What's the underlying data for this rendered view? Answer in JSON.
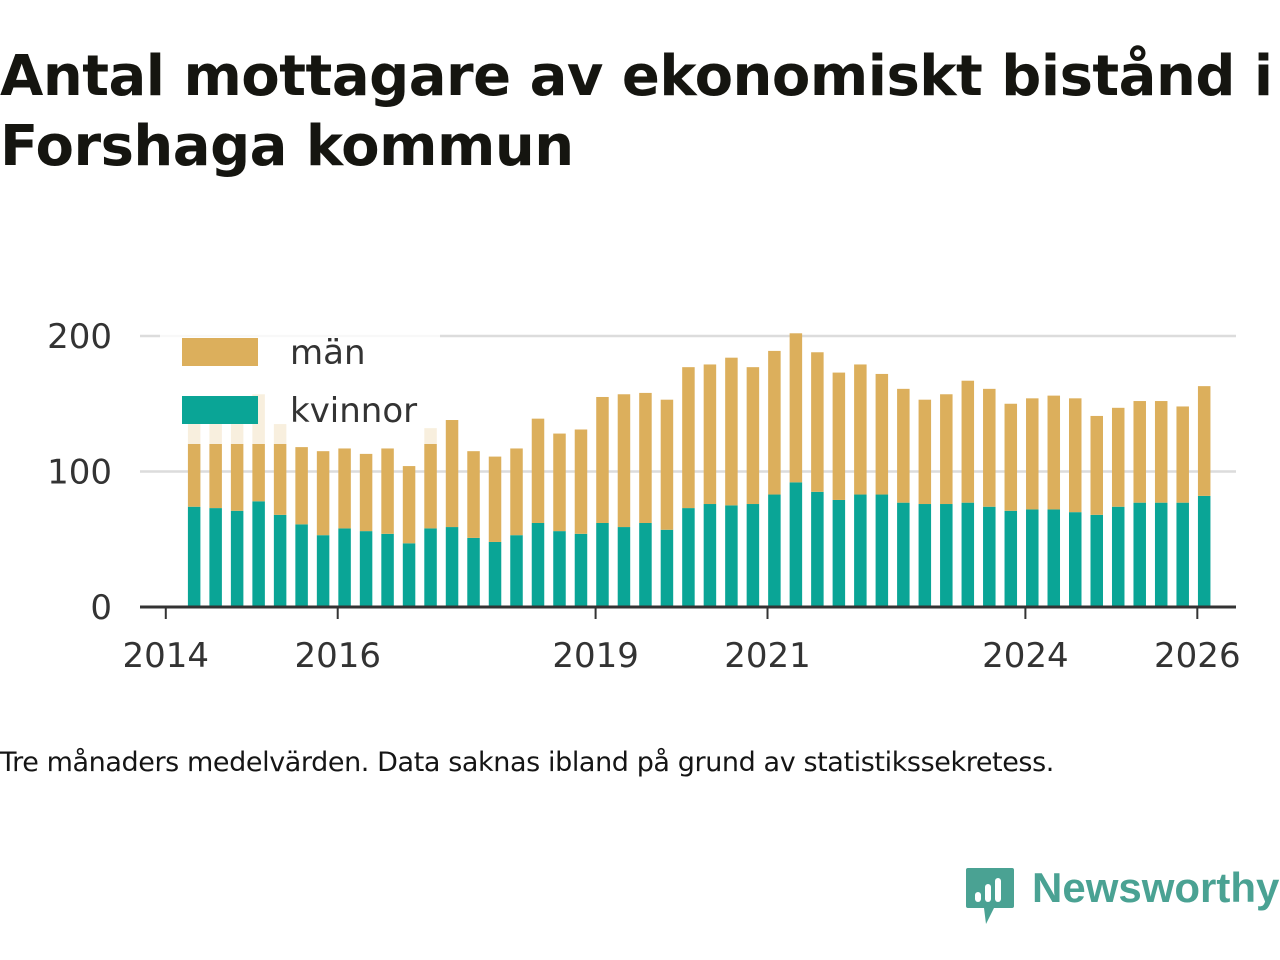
{
  "title": "Antal mottagare av ekonomiskt bistånd i Forshaga kommun",
  "caption": "Tre månaders medelvärden. Data saknas ibland på grund av statistikssekretess.",
  "brand": {
    "name": "Newsworthy",
    "color": "#4aa293"
  },
  "colors": {
    "man": "#dcaf5c",
    "kvinnor": "#0aa596",
    "grid": "#dcdcdc",
    "axis": "#333333",
    "text": "#333333"
  },
  "chart_data": {
    "type": "bar",
    "stacked": true,
    "ylim": [
      0,
      200
    ],
    "yticks": [
      0,
      100,
      200
    ],
    "xlim": [
      2013.7,
      2026.45
    ],
    "xticks": [
      2014,
      2016,
      2019,
      2021,
      2024,
      2026
    ],
    "legend": "top-left",
    "grid": true,
    "x": [
      2014.33,
      2014.58,
      2014.83,
      2015.08,
      2015.33,
      2015.58,
      2015.83,
      2016.08,
      2016.33,
      2016.58,
      2016.83,
      2017.08,
      2017.33,
      2017.58,
      2017.83,
      2018.08,
      2018.33,
      2018.58,
      2018.83,
      2019.08,
      2019.33,
      2019.58,
      2019.83,
      2020.08,
      2020.33,
      2020.58,
      2020.83,
      2021.08,
      2021.33,
      2021.58,
      2021.83,
      2022.08,
      2022.33,
      2022.58,
      2022.83,
      2023.08,
      2023.33,
      2023.58,
      2023.83,
      2024.08,
      2024.33,
      2024.58,
      2024.83,
      2025.08,
      2025.33,
      2025.58,
      2025.83,
      2026.08
    ],
    "series": [
      {
        "name": "kvinnor",
        "color": "#0aa596",
        "values": [
          74,
          73,
          71,
          78,
          68,
          61,
          53,
          58,
          56,
          54,
          47,
          58,
          59,
          51,
          48,
          53,
          62,
          56,
          54,
          62,
          59,
          62,
          57,
          73,
          76,
          75,
          76,
          83,
          92,
          85,
          79,
          83,
          83,
          77,
          76,
          76,
          77,
          74,
          71,
          72,
          72,
          70,
          68,
          74,
          77,
          77,
          77,
          82
        ]
      },
      {
        "name": "män",
        "color": "#dcaf5c",
        "values": [
          66,
          67,
          64,
          79,
          67,
          57,
          62,
          59,
          57,
          63,
          57,
          74,
          79,
          64,
          63,
          64,
          77,
          72,
          77,
          93,
          98,
          96,
          96,
          104,
          103,
          109,
          101,
          106,
          110,
          103,
          94,
          96,
          89,
          84,
          77,
          81,
          90,
          87,
          79,
          82,
          84,
          84,
          73,
          73,
          75,
          75,
          71,
          81
        ]
      }
    ]
  }
}
